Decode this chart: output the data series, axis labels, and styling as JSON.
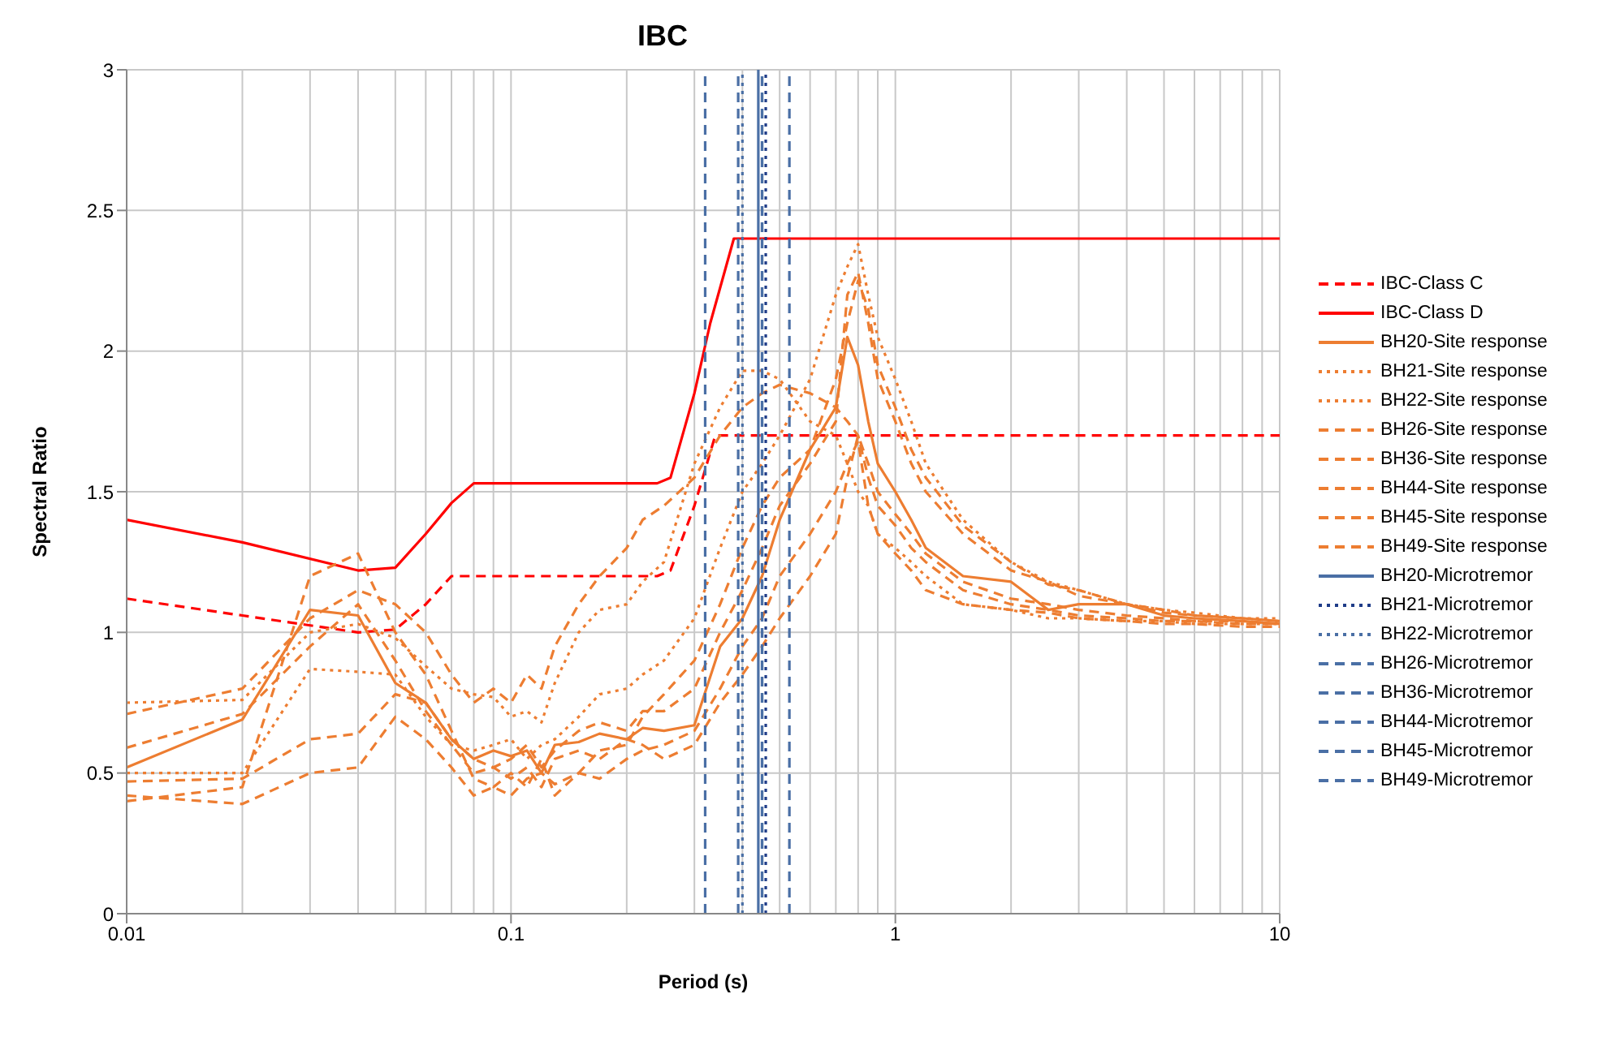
{
  "chart_data": {
    "type": "line",
    "title": "IBC",
    "xlabel": "Period (s)",
    "ylabel": "Spectral Ratio",
    "log": "x",
    "xlim": [
      0.01,
      10
    ],
    "xticks": [
      0.01,
      0.1,
      1,
      10
    ],
    "ylim": [
      0,
      3
    ],
    "yticks": [
      0,
      0.5,
      1,
      1.5,
      2,
      2.5,
      3
    ],
    "grid": true,
    "legend": "right",
    "marker": "none",
    "x": [
      0.01,
      0.02,
      0.03,
      0.04,
      0.05,
      0.06,
      0.07,
      0.08,
      0.09,
      0.1,
      0.11,
      0.12,
      0.13,
      0.15,
      0.17,
      0.2,
      0.22,
      0.25,
      0.3,
      0.35,
      0.4,
      0.45,
      0.5,
      0.6,
      0.7,
      0.75,
      0.8,
      0.85,
      0.9,
      1,
      1.1,
      1.2,
      1.5,
      2,
      2.5,
      3,
      4,
      5,
      6,
      8,
      10
    ],
    "series": [
      {
        "name": "IBC-Class C",
        "color": "#ff0000",
        "line_style": "dashed",
        "x": [
          0.01,
          0.02,
          0.04,
          0.05,
          0.06,
          0.07,
          0.24,
          0.26,
          0.3,
          0.34,
          10
        ],
        "values": [
          1.12,
          1.06,
          1.0,
          1.01,
          1.1,
          1.2,
          1.2,
          1.22,
          1.45,
          1.7,
          1.7
        ]
      },
      {
        "name": "IBC-Class D",
        "color": "#ff0000",
        "line_style": "solid",
        "x": [
          0.01,
          0.02,
          0.04,
          0.05,
          0.06,
          0.07,
          0.08,
          0.24,
          0.26,
          0.3,
          0.33,
          0.38,
          10
        ],
        "values": [
          1.4,
          1.32,
          1.22,
          1.23,
          1.35,
          1.46,
          1.53,
          1.53,
          1.55,
          1.85,
          2.1,
          2.4,
          2.4
        ]
      },
      {
        "name": "BH20-Site response",
        "color": "#ed7d31",
        "line_style": "solid",
        "values": [
          0.52,
          0.69,
          1.08,
          1.06,
          0.82,
          0.75,
          0.62,
          0.55,
          0.58,
          0.56,
          0.58,
          0.5,
          0.6,
          0.61,
          0.64,
          0.62,
          0.66,
          0.65,
          0.67,
          0.95,
          1.05,
          1.2,
          1.4,
          1.65,
          1.8,
          2.05,
          1.95,
          1.75,
          1.6,
          1.5,
          1.4,
          1.3,
          1.2,
          1.18,
          1.08,
          1.1,
          1.1,
          1.06,
          1.05,
          1.04,
          1.03
        ]
      },
      {
        "name": "BH21-Site response",
        "color": "#ed7d31",
        "line_style": "dotted",
        "values": [
          0.75,
          0.76,
          1.0,
          1.03,
          0.98,
          0.88,
          0.8,
          0.78,
          0.77,
          0.7,
          0.72,
          0.68,
          0.82,
          1.0,
          1.08,
          1.1,
          1.18,
          1.25,
          1.6,
          1.8,
          1.93,
          1.93,
          1.9,
          1.75,
          1.7,
          1.6,
          1.5,
          1.45,
          1.35,
          1.3,
          1.25,
          1.2,
          1.1,
          1.08,
          1.05,
          1.05,
          1.04,
          1.04,
          1.03,
          1.03,
          1.03
        ]
      },
      {
        "name": "BH22-Site response",
        "color": "#ed7d31",
        "line_style": "dotted",
        "values": [
          0.5,
          0.5,
          0.87,
          0.86,
          0.85,
          0.7,
          0.6,
          0.58,
          0.6,
          0.62,
          0.55,
          0.6,
          0.62,
          0.7,
          0.78,
          0.8,
          0.85,
          0.9,
          1.05,
          1.3,
          1.5,
          1.6,
          1.7,
          1.9,
          2.2,
          2.3,
          2.38,
          2.2,
          2.05,
          1.9,
          1.75,
          1.6,
          1.4,
          1.25,
          1.18,
          1.15,
          1.1,
          1.08,
          1.07,
          1.05,
          1.05
        ]
      },
      {
        "name": "BH26-Site response",
        "color": "#ed7d31",
        "line_style": "dashed",
        "values": [
          0.42,
          0.39,
          0.5,
          0.52,
          0.7,
          0.62,
          0.52,
          0.42,
          0.45,
          0.42,
          0.48,
          0.5,
          0.46,
          0.5,
          0.58,
          0.6,
          0.7,
          0.78,
          0.9,
          1.1,
          1.3,
          1.45,
          1.55,
          1.65,
          1.9,
          2.1,
          2.25,
          2.15,
          1.95,
          1.8,
          1.65,
          1.55,
          1.38,
          1.25,
          1.17,
          1.15,
          1.1,
          1.08,
          1.06,
          1.05,
          1.04
        ]
      },
      {
        "name": "BH36-Site response",
        "color": "#ed7d31",
        "line_style": "dashed",
        "values": [
          0.4,
          0.45,
          1.2,
          1.28,
          1.0,
          0.85,
          0.65,
          0.48,
          0.45,
          0.5,
          0.45,
          0.55,
          0.42,
          0.5,
          0.48,
          0.55,
          0.58,
          0.6,
          0.65,
          0.8,
          0.95,
          1.05,
          1.2,
          1.35,
          1.5,
          1.6,
          1.68,
          1.45,
          1.35,
          1.28,
          1.22,
          1.15,
          1.1,
          1.08,
          1.07,
          1.05,
          1.04,
          1.03,
          1.03,
          1.02,
          1.02
        ]
      },
      {
        "name": "BH44-Site response",
        "color": "#ed7d31",
        "line_style": "dashed",
        "values": [
          0.47,
          0.48,
          0.62,
          0.64,
          0.78,
          0.75,
          0.62,
          0.55,
          0.52,
          0.55,
          0.6,
          0.52,
          0.58,
          0.65,
          0.68,
          0.65,
          0.72,
          0.72,
          0.8,
          1.0,
          1.15,
          1.3,
          1.45,
          1.6,
          1.75,
          2.2,
          2.28,
          2.1,
          1.9,
          1.75,
          1.6,
          1.5,
          1.35,
          1.22,
          1.18,
          1.13,
          1.1,
          1.07,
          1.06,
          1.05,
          1.04
        ]
      },
      {
        "name": "BH45-Site response",
        "color": "#ed7d31",
        "line_style": "dashed",
        "values": [
          0.71,
          0.8,
          1.05,
          1.15,
          1.1,
          1.0,
          0.85,
          0.75,
          0.8,
          0.75,
          0.85,
          0.8,
          0.95,
          1.1,
          1.2,
          1.3,
          1.4,
          1.45,
          1.55,
          1.7,
          1.8,
          1.85,
          1.88,
          1.85,
          1.8,
          1.75,
          1.7,
          1.55,
          1.45,
          1.38,
          1.3,
          1.25,
          1.15,
          1.1,
          1.08,
          1.06,
          1.05,
          1.04,
          1.04,
          1.03,
          1.03
        ]
      },
      {
        "name": "BH49-Site response",
        "color": "#ed7d31",
        "line_style": "dashed",
        "values": [
          0.59,
          0.71,
          0.95,
          1.1,
          0.9,
          0.72,
          0.6,
          0.5,
          0.52,
          0.48,
          0.52,
          0.45,
          0.55,
          0.58,
          0.55,
          0.62,
          0.6,
          0.55,
          0.6,
          0.75,
          0.85,
          0.95,
          1.05,
          1.2,
          1.35,
          1.55,
          1.7,
          1.6,
          1.5,
          1.42,
          1.35,
          1.28,
          1.18,
          1.12,
          1.1,
          1.08,
          1.06,
          1.05,
          1.04,
          1.04,
          1.03
        ]
      },
      {
        "name": "BH20-Microtremor",
        "color": "#4a6fa5",
        "line_style": "solid",
        "x": [
          0.44,
          0.44
        ],
        "values": [
          0,
          3
        ]
      },
      {
        "name": "BH21-Microtremor",
        "color": "#1f3c88",
        "line_style": "dotted",
        "x": [
          0.46,
          0.46
        ],
        "values": [
          0,
          3
        ]
      },
      {
        "name": "BH22-Microtremor",
        "color": "#4a6fa5",
        "line_style": "dotted",
        "x": [
          0.4,
          0.4
        ],
        "values": [
          0,
          3
        ]
      },
      {
        "name": "BH26-Microtremor",
        "color": "#4a6fa5",
        "line_style": "dashed",
        "x": [
          0.53,
          0.53
        ],
        "values": [
          0,
          3
        ]
      },
      {
        "name": "BH36-Microtremor",
        "color": "#4a6fa5",
        "line_style": "dashed",
        "x": [
          0.39,
          0.39
        ],
        "values": [
          0,
          3
        ]
      },
      {
        "name": "BH44-Microtremor",
        "color": "#4a6fa5",
        "line_style": "dashed",
        "x": [
          0.45,
          0.45
        ],
        "values": [
          0,
          3
        ]
      },
      {
        "name": "BH45-Microtremor",
        "color": "#4a6fa5",
        "line_style": "dashed",
        "x": [
          0.45,
          0.45
        ],
        "values": [
          0,
          3
        ]
      },
      {
        "name": "BH49-Microtremor",
        "color": "#4a6fa5",
        "line_style": "dashed",
        "x": [
          0.32,
          0.32
        ],
        "values": [
          0,
          3
        ]
      }
    ]
  }
}
